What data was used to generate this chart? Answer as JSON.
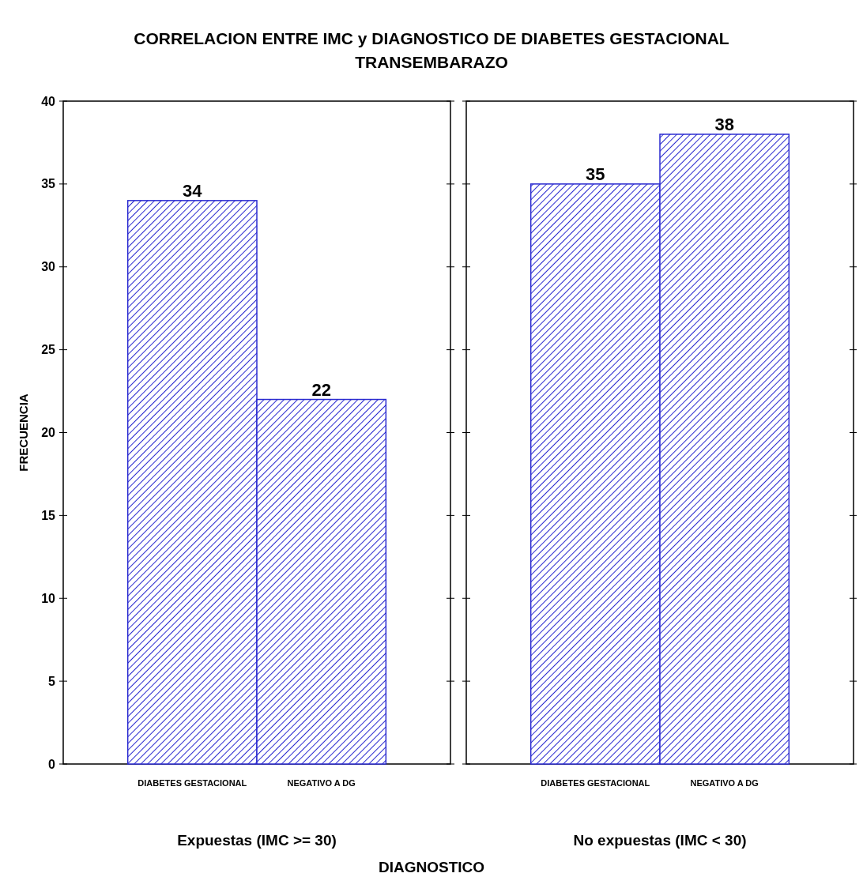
{
  "chart_data": [
    {
      "type": "bar",
      "title": "CORRELACION ENTRE IMC y DIAGNOSTICO DE DIABETES GESTACIONAL TRANSEMBARAZO",
      "categories": [
        "DIABETES GESTACIONAL",
        "NEGATIVO A DG"
      ],
      "values": [
        34,
        22
      ],
      "color": "#2a2ad0",
      "xlabel": "Expuestas (IMC >= 30)",
      "ylabel": "FRECUENCIA",
      "ylim": [
        0,
        40
      ],
      "yticks": [
        0,
        5,
        10,
        15,
        20,
        25,
        30,
        35,
        40
      ],
      "data_labels": true,
      "annotations": [
        "DIAGNOSTICO"
      ]
    },
    {
      "type": "bar",
      "categories": [
        "DIABETES GESTACIONAL",
        "NEGATIVO A DG"
      ],
      "values": [
        35,
        38
      ],
      "color": "#2a2ad0",
      "xlabel": "No expuestas (IMC < 30)",
      "ylim": [
        0,
        40
      ],
      "yticks": [
        0,
        5,
        10,
        15,
        20,
        25,
        30,
        35,
        40
      ],
      "data_labels": true,
      "tick_labels": "x"
    }
  ]
}
